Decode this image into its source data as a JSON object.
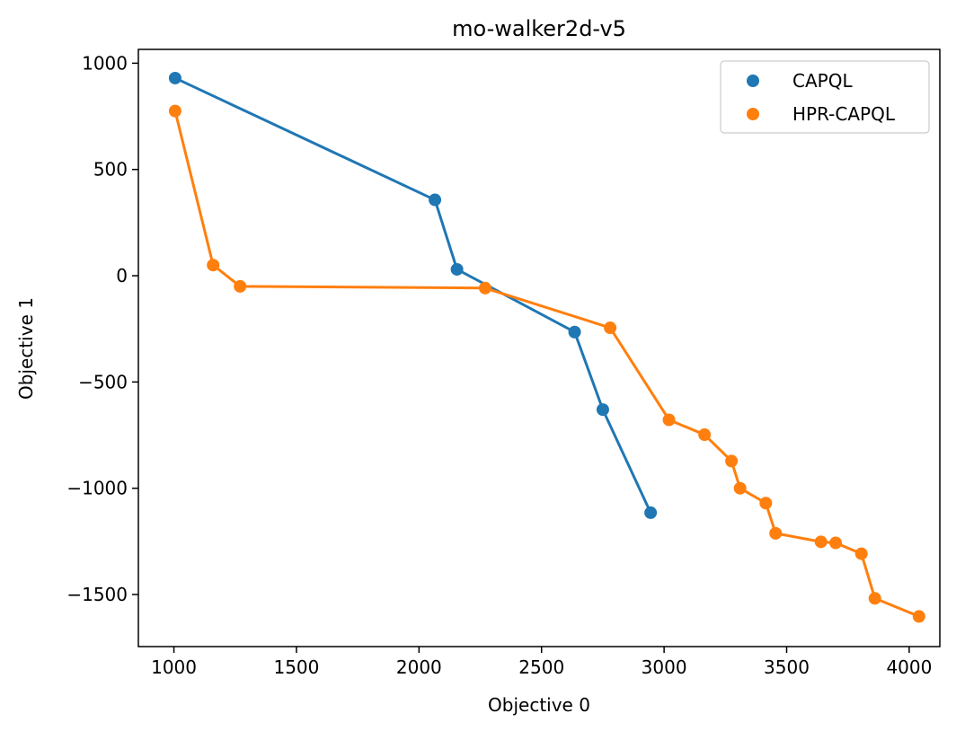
{
  "chart_data": {
    "type": "scatter",
    "title": "mo-walker2d-v5",
    "xlabel": "Objective 0",
    "ylabel": "Objective 1",
    "xlim": [
      855,
      4125
    ],
    "ylim": [
      -1745,
      1065
    ],
    "xticks": [
      1000,
      1500,
      2000,
      2500,
      3000,
      3500,
      4000
    ],
    "yticks": [
      1000,
      500,
      0,
      -500,
      -1000,
      -1500
    ],
    "xtick_labels": [
      "1000",
      "1500",
      "2000",
      "2500",
      "3000",
      "3500",
      "4000"
    ],
    "ytick_labels": [
      "1000",
      "500",
      "0",
      "−500",
      "−1000",
      "−1500"
    ],
    "grid": false,
    "legend_position": "top-right",
    "series": [
      {
        "name": "CAPQL",
        "color": "#1f77b4",
        "connected": true,
        "points": [
          [
            1005,
            930
          ],
          [
            2065,
            357
          ],
          [
            2155,
            30
          ],
          [
            2635,
            -265
          ],
          [
            2750,
            -630
          ],
          [
            2945,
            -1115
          ]
        ]
      },
      {
        "name": "HPR-CAPQL",
        "color": "#ff7f0e",
        "connected": true,
        "points": [
          [
            1005,
            775
          ],
          [
            1160,
            50
          ],
          [
            1270,
            -50
          ],
          [
            2270,
            -58
          ],
          [
            2780,
            -245
          ],
          [
            3020,
            -678
          ],
          [
            3165,
            -748
          ],
          [
            3275,
            -872
          ],
          [
            3310,
            -1000
          ],
          [
            3415,
            -1070
          ],
          [
            3455,
            -1212
          ],
          [
            3640,
            -1252
          ],
          [
            3700,
            -1257
          ],
          [
            3805,
            -1308
          ],
          [
            3860,
            -1518
          ],
          [
            4040,
            -1603
          ]
        ]
      }
    ]
  }
}
